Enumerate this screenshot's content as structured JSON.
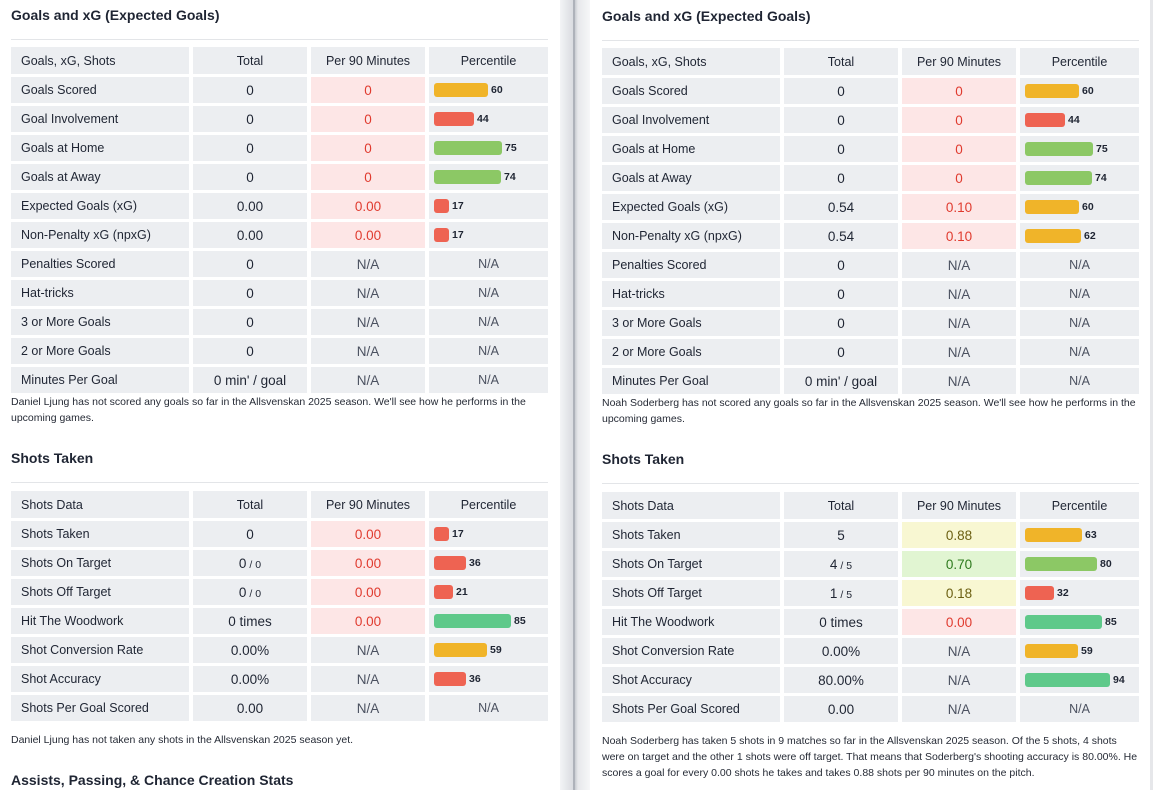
{
  "colors": {
    "bar_yellow": "#f0b429",
    "bar_red": "#ee6352",
    "bar_lightgreen": "#8cc865",
    "bar_teal": "#5ec98a",
    "text_red": "#e03b2f"
  },
  "left": {
    "goals": {
      "title": "Goals and xG (Expected Goals)",
      "headers": [
        "Goals, xG, Shots",
        "Total",
        "Per 90 Minutes",
        "Percentile"
      ],
      "rows": [
        {
          "label": "Goals Scored",
          "total": "0",
          "denom": "",
          "p90": "0",
          "p90_tone": "red",
          "pct": 60,
          "pct_label": "60",
          "bar_color": "#f0b429"
        },
        {
          "label": "Goal Involvement",
          "total": "0",
          "denom": "",
          "p90": "0",
          "p90_tone": "red",
          "pct": 44,
          "pct_label": "44",
          "bar_color": "#ee6352"
        },
        {
          "label": "Goals at Home",
          "total": "0",
          "denom": "",
          "p90": "0",
          "p90_tone": "red",
          "pct": 75,
          "pct_label": "75",
          "bar_color": "#8cc865"
        },
        {
          "label": "Goals at Away",
          "total": "0",
          "denom": "",
          "p90": "0",
          "p90_tone": "red",
          "pct": 74,
          "pct_label": "74",
          "bar_color": "#8cc865"
        },
        {
          "label": "Expected Goals (xG)",
          "total": "0.00",
          "denom": "",
          "p90": "0.00",
          "p90_tone": "red",
          "pct": 17,
          "pct_label": "17",
          "bar_color": "#ee6352"
        },
        {
          "label": "Non-Penalty xG (npxG)",
          "total": "0.00",
          "denom": "",
          "p90": "0.00",
          "p90_tone": "red",
          "pct": 17,
          "pct_label": "17",
          "bar_color": "#ee6352"
        },
        {
          "label": "Penalties Scored",
          "total": "0",
          "denom": "",
          "p90": "N/A",
          "p90_tone": "na",
          "pct": null,
          "pct_label": "N/A",
          "bar_color": ""
        },
        {
          "label": "Hat-tricks",
          "total": "0",
          "denom": "",
          "p90": "N/A",
          "p90_tone": "na",
          "pct": null,
          "pct_label": "N/A",
          "bar_color": ""
        },
        {
          "label": "3 or More Goals",
          "total": "0",
          "denom": "",
          "p90": "N/A",
          "p90_tone": "na",
          "pct": null,
          "pct_label": "N/A",
          "bar_color": ""
        },
        {
          "label": "2 or More Goals",
          "total": "0",
          "denom": "",
          "p90": "N/A",
          "p90_tone": "na",
          "pct": null,
          "pct_label": "N/A",
          "bar_color": ""
        },
        {
          "label": "Minutes Per Goal",
          "total": "0 min' / goal",
          "denom": "",
          "p90": "N/A",
          "p90_tone": "na",
          "pct": null,
          "pct_label": "N/A",
          "bar_color": ""
        }
      ],
      "note": "Daniel Ljung has not scored any goals so far in the Allsvenskan 2025 season. We'll see how he performs in the upcoming games."
    },
    "shots": {
      "title": "Shots Taken",
      "headers": [
        "Shots Data",
        "Total",
        "Per 90 Minutes",
        "Percentile"
      ],
      "rows": [
        {
          "label": "Shots Taken",
          "total": "0",
          "denom": "",
          "p90": "0.00",
          "p90_tone": "red",
          "pct": 17,
          "pct_label": "17",
          "bar_color": "#ee6352"
        },
        {
          "label": "Shots On Target",
          "total": "0",
          "denom": "/ 0",
          "p90": "0.00",
          "p90_tone": "red",
          "pct": 36,
          "pct_label": "36",
          "bar_color": "#ee6352"
        },
        {
          "label": "Shots Off Target",
          "total": "0",
          "denom": "/ 0",
          "p90": "0.00",
          "p90_tone": "red",
          "pct": 21,
          "pct_label": "21",
          "bar_color": "#ee6352"
        },
        {
          "label": "Hit The Woodwork",
          "total": "0 times",
          "denom": "",
          "p90": "0.00",
          "p90_tone": "red",
          "pct": 85,
          "pct_label": "85",
          "bar_color": "#5ec98a"
        },
        {
          "label": "Shot Conversion Rate",
          "total": "0.00%",
          "denom": "",
          "p90": "N/A",
          "p90_tone": "na",
          "pct": 59,
          "pct_label": "59",
          "bar_color": "#f0b429"
        },
        {
          "label": "Shot Accuracy",
          "total": "0.00%",
          "denom": "",
          "p90": "N/A",
          "p90_tone": "na",
          "pct": 36,
          "pct_label": "36",
          "bar_color": "#ee6352"
        },
        {
          "label": "Shots Per Goal Scored",
          "total": "0.00",
          "denom": "",
          "p90": "N/A",
          "p90_tone": "na",
          "pct": null,
          "pct_label": "N/A",
          "bar_color": ""
        }
      ],
      "note": "Daniel Ljung has not taken any shots in the Allsvenskan 2025 season yet."
    },
    "assists_title": "Assists, Passing, & Chance Creation Stats"
  },
  "right": {
    "goals": {
      "title": "Goals and xG (Expected Goals)",
      "headers": [
        "Goals, xG, Shots",
        "Total",
        "Per 90 Minutes",
        "Percentile"
      ],
      "rows": [
        {
          "label": "Goals Scored",
          "total": "0",
          "denom": "",
          "p90": "0",
          "p90_tone": "red",
          "pct": 60,
          "pct_label": "60",
          "bar_color": "#f0b429"
        },
        {
          "label": "Goal Involvement",
          "total": "0",
          "denom": "",
          "p90": "0",
          "p90_tone": "red",
          "pct": 44,
          "pct_label": "44",
          "bar_color": "#ee6352"
        },
        {
          "label": "Goals at Home",
          "total": "0",
          "denom": "",
          "p90": "0",
          "p90_tone": "red",
          "pct": 75,
          "pct_label": "75",
          "bar_color": "#8cc865"
        },
        {
          "label": "Goals at Away",
          "total": "0",
          "denom": "",
          "p90": "0",
          "p90_tone": "red",
          "pct": 74,
          "pct_label": "74",
          "bar_color": "#8cc865"
        },
        {
          "label": "Expected Goals (xG)",
          "total": "0.54",
          "denom": "",
          "p90": "0.10",
          "p90_tone": "red",
          "pct": 60,
          "pct_label": "60",
          "bar_color": "#f0b429"
        },
        {
          "label": "Non-Penalty xG (npxG)",
          "total": "0.54",
          "denom": "",
          "p90": "0.10",
          "p90_tone": "red",
          "pct": 62,
          "pct_label": "62",
          "bar_color": "#f0b429"
        },
        {
          "label": "Penalties Scored",
          "total": "0",
          "denom": "",
          "p90": "N/A",
          "p90_tone": "na",
          "pct": null,
          "pct_label": "N/A",
          "bar_color": ""
        },
        {
          "label": "Hat-tricks",
          "total": "0",
          "denom": "",
          "p90": "N/A",
          "p90_tone": "na",
          "pct": null,
          "pct_label": "N/A",
          "bar_color": ""
        },
        {
          "label": "3 or More Goals",
          "total": "0",
          "denom": "",
          "p90": "N/A",
          "p90_tone": "na",
          "pct": null,
          "pct_label": "N/A",
          "bar_color": ""
        },
        {
          "label": "2 or More Goals",
          "total": "0",
          "denom": "",
          "p90": "N/A",
          "p90_tone": "na",
          "pct": null,
          "pct_label": "N/A",
          "bar_color": ""
        },
        {
          "label": "Minutes Per Goal",
          "total": "0 min' / goal",
          "denom": "",
          "p90": "N/A",
          "p90_tone": "na",
          "pct": null,
          "pct_label": "N/A",
          "bar_color": ""
        }
      ],
      "note": "Noah Soderberg has not scored any goals so far in the Allsvenskan 2025 season. We'll see how he performs in the upcoming games."
    },
    "shots": {
      "title": "Shots Taken",
      "headers": [
        "Shots Data",
        "Total",
        "Per 90 Minutes",
        "Percentile"
      ],
      "rows": [
        {
          "label": "Shots Taken",
          "total": "5",
          "denom": "",
          "p90": "0.88",
          "p90_tone": "yellow",
          "pct": 63,
          "pct_label": "63",
          "bar_color": "#f0b429"
        },
        {
          "label": "Shots On Target",
          "total": "4",
          "denom": "/ 5",
          "p90": "0.70",
          "p90_tone": "green",
          "pct": 80,
          "pct_label": "80",
          "bar_color": "#8cc865"
        },
        {
          "label": "Shots Off Target",
          "total": "1",
          "denom": "/ 5",
          "p90": "0.18",
          "p90_tone": "yellow",
          "pct": 32,
          "pct_label": "32",
          "bar_color": "#ee6352"
        },
        {
          "label": "Hit The Woodwork",
          "total": "0 times",
          "denom": "",
          "p90": "0.00",
          "p90_tone": "red",
          "pct": 85,
          "pct_label": "85",
          "bar_color": "#5ec98a"
        },
        {
          "label": "Shot Conversion Rate",
          "total": "0.00%",
          "denom": "",
          "p90": "N/A",
          "p90_tone": "na",
          "pct": 59,
          "pct_label": "59",
          "bar_color": "#f0b429"
        },
        {
          "label": "Shot Accuracy",
          "total": "80.00%",
          "denom": "",
          "p90": "N/A",
          "p90_tone": "na",
          "pct": 94,
          "pct_label": "94",
          "bar_color": "#5ec98a"
        },
        {
          "label": "Shots Per Goal Scored",
          "total": "0.00",
          "denom": "",
          "p90": "N/A",
          "p90_tone": "na",
          "pct": null,
          "pct_label": "N/A",
          "bar_color": ""
        }
      ],
      "note": "Noah Soderberg has taken 5 shots in 9 matches so far in the Allsvenskan 2025 season. Of the 5 shots, 4 shots were on target and the other 1 shots were off target. That means that Soderberg's shooting accuracy is 80.00%. He scores a goal for every 0.00 shots he takes and takes 0.88 shots per 90 minutes on the pitch."
    }
  }
}
